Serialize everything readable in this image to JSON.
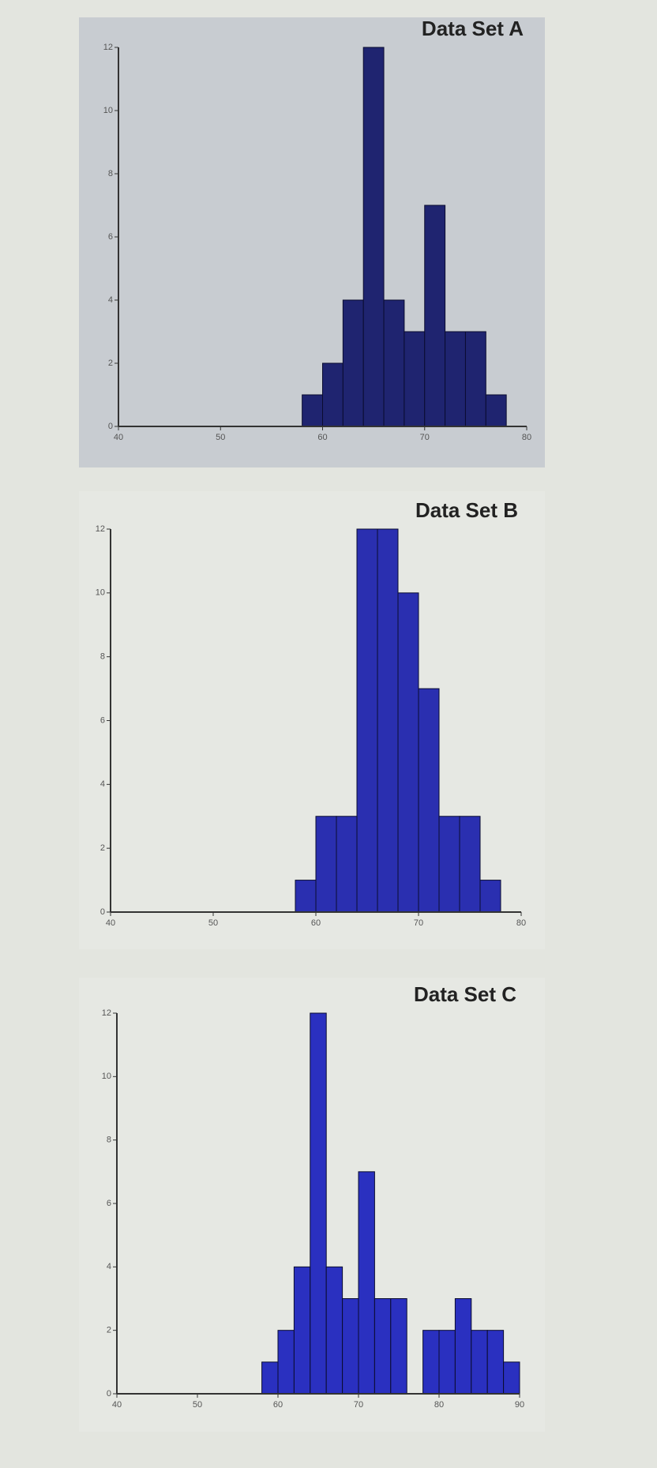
{
  "chart_data": [
    {
      "type": "histogram",
      "title": "Data Set A",
      "color": "#1f2470",
      "bins": [
        58,
        60,
        62,
        64,
        66,
        68,
        70,
        72,
        74,
        76,
        78
      ],
      "values": [
        1,
        2,
        4,
        12,
        4,
        3,
        7,
        3,
        3,
        1
      ],
      "xlim": [
        40,
        80
      ],
      "xticks": [
        40,
        50,
        60,
        70,
        80
      ],
      "ylim": [
        0,
        12
      ],
      "yticks": [
        0,
        2,
        4,
        6,
        8,
        10,
        12
      ]
    },
    {
      "type": "histogram",
      "title": "Data Set B",
      "color": "#2a2fb0",
      "bins": [
        58,
        60,
        62,
        64,
        66,
        68,
        70,
        72,
        74,
        76,
        78
      ],
      "values": [
        1,
        3,
        3,
        12,
        12,
        10,
        7,
        3,
        3,
        1
      ],
      "xlim": [
        40,
        80
      ],
      "xticks": [
        40,
        50,
        60,
        70,
        80
      ],
      "ylim": [
        0,
        12
      ],
      "yticks": [
        0,
        2,
        4,
        6,
        8,
        10,
        12
      ]
    },
    {
      "type": "histogram",
      "title": "Data Set C",
      "color": "#2a30c0",
      "bins": [
        58,
        60,
        62,
        64,
        66,
        68,
        70,
        72,
        74,
        76,
        78,
        80,
        82,
        84,
        86,
        88,
        90
      ],
      "values": [
        1,
        2,
        4,
        12,
        4,
        3,
        7,
        3,
        3,
        0,
        2,
        2,
        3,
        2,
        2,
        1
      ],
      "xlim": [
        40,
        90
      ],
      "xticks": [
        40,
        50,
        60,
        70,
        80,
        90
      ],
      "ylim": [
        0,
        12
      ],
      "yticks": [
        0,
        2,
        4,
        6,
        8,
        10,
        12
      ]
    }
  ]
}
